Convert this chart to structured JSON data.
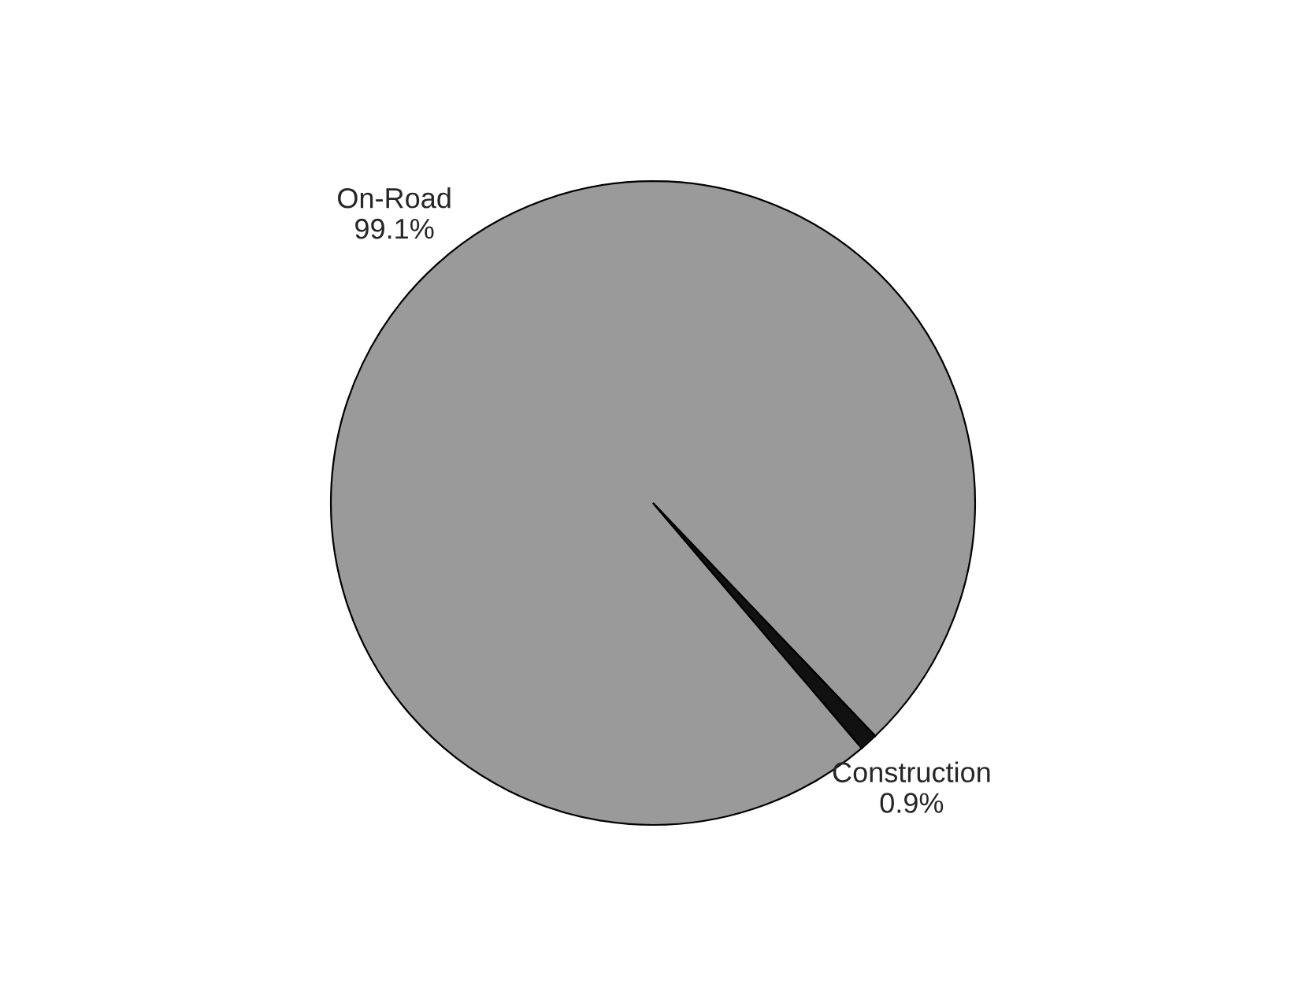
{
  "chart_data": {
    "type": "pie",
    "categories": [
      "On-Road",
      "Construction"
    ],
    "values": [
      99.1,
      0.9
    ],
    "value_labels": [
      "99.1%",
      "0.9%"
    ],
    "colors": [
      "#9a9a9a",
      "#111111"
    ]
  }
}
